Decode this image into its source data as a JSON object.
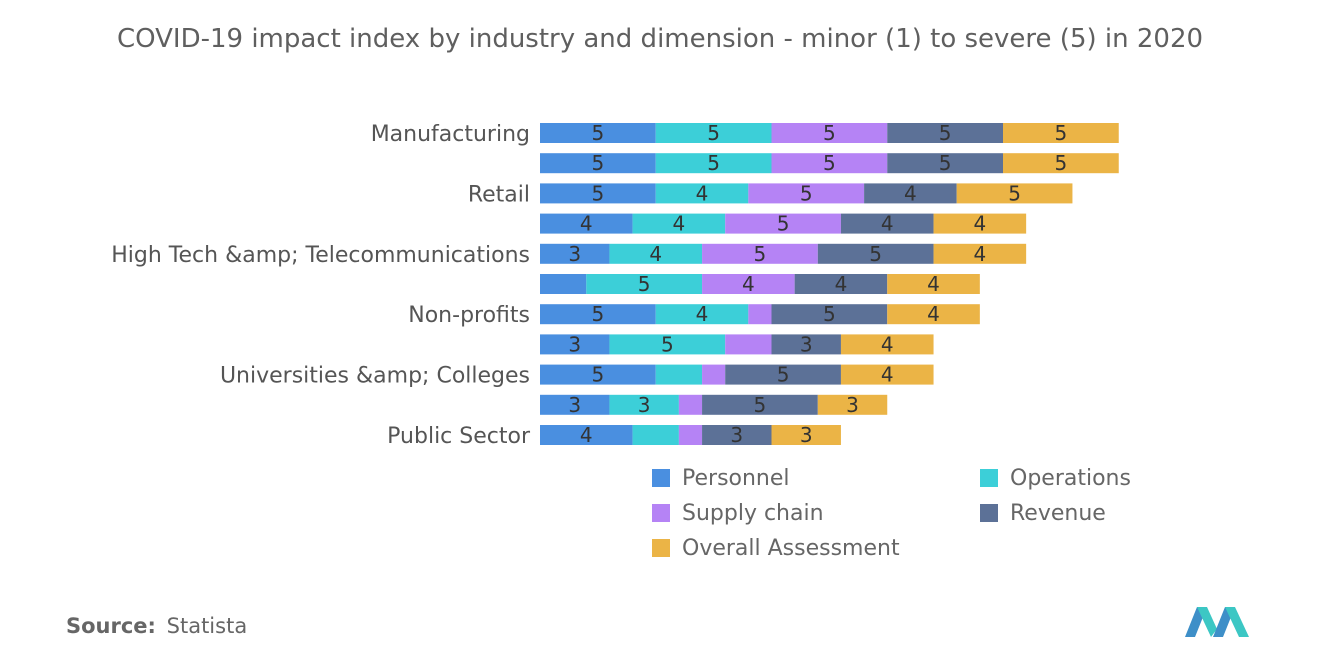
{
  "chart_data": {
    "type": "bar",
    "orientation": "horizontal",
    "stacked": true,
    "title": "COVID-19 impact index by industry and dimension - minor (1) to severe (5) in 2020",
    "category_labels": [
      "Manufacturing",
      "",
      "Retail",
      "",
      "High Tech &amp; Telecommunications",
      "",
      "Non-profits",
      "",
      "Universities &amp; Colleges",
      "",
      "Public Sector"
    ],
    "series": [
      {
        "name": "Personnel",
        "color": "#4a8fe0",
        "values": [
          5,
          5,
          5,
          4,
          3,
          2,
          5,
          3,
          5,
          3,
          4
        ],
        "labels": [
          "5",
          "5",
          "5",
          "4",
          "3",
          "",
          "5",
          "3",
          "5",
          "3",
          "4"
        ]
      },
      {
        "name": "Operations",
        "color": "#3ccfd8",
        "values": [
          5,
          5,
          4,
          4,
          4,
          5,
          4,
          5,
          2,
          3,
          2
        ],
        "labels": [
          "5",
          "5",
          "4",
          "4",
          "4",
          "5",
          "4",
          "5",
          "",
          "3",
          ""
        ]
      },
      {
        "name": "Supply chain",
        "color": "#b583f5",
        "values": [
          5,
          5,
          5,
          5,
          5,
          4,
          1,
          2,
          1,
          1,
          1
        ],
        "labels": [
          "5",
          "5",
          "5",
          "5",
          "5",
          "4",
          "",
          "",
          "",
          "",
          ""
        ]
      },
      {
        "name": "Revenue",
        "color": "#5c7197",
        "values": [
          5,
          5,
          4,
          4,
          5,
          4,
          5,
          3,
          5,
          5,
          3
        ],
        "labels": [
          "5",
          "5",
          "4",
          "4",
          "5",
          "4",
          "5",
          "3",
          "5",
          "5",
          "3"
        ]
      },
      {
        "name": "Overall Assessment",
        "color": "#ebb446",
        "values": [
          5,
          5,
          5,
          4,
          4,
          4,
          4,
          4,
          4,
          3,
          3
        ],
        "labels": [
          "5",
          "5",
          "5",
          "4",
          "4",
          "4",
          "4",
          "4",
          "4",
          "3",
          "3"
        ]
      }
    ],
    "legend_position": "bottom",
    "grid": false
  },
  "source": {
    "label": "Source:",
    "value": "Statista"
  }
}
